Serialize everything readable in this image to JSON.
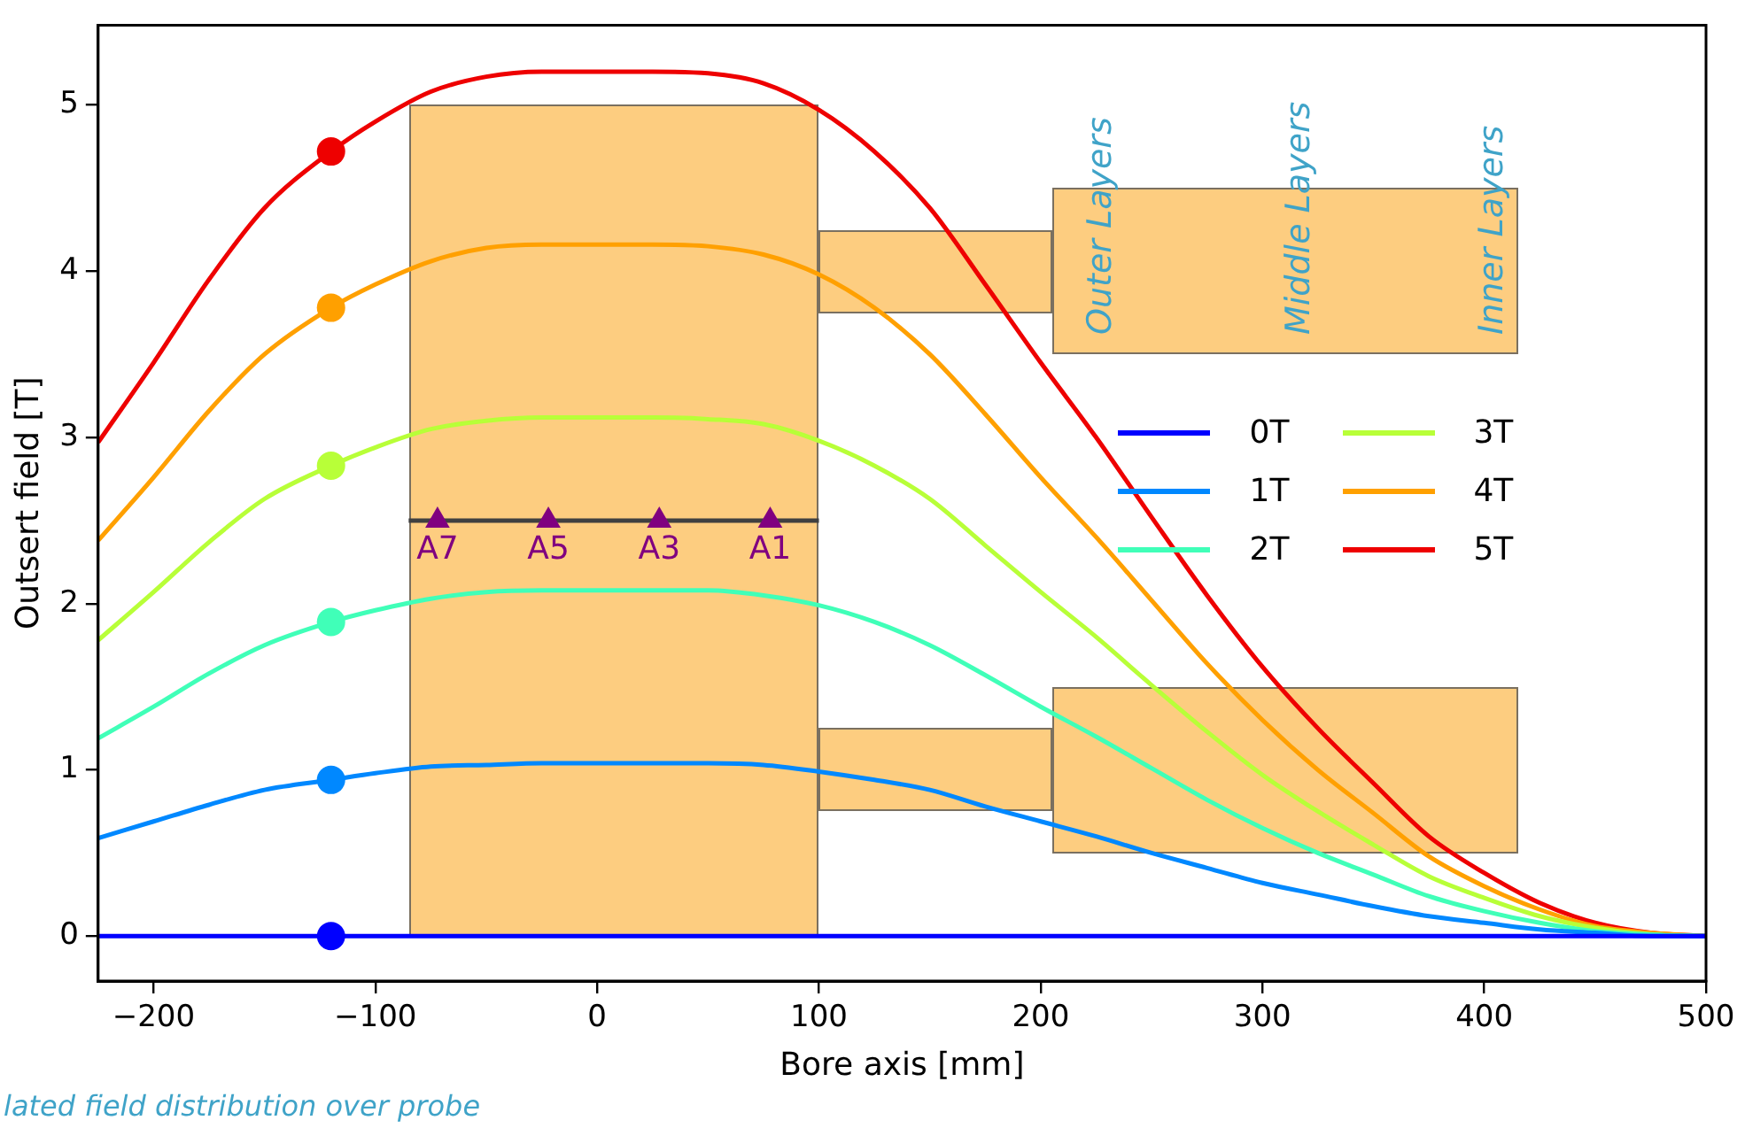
{
  "chart_data": {
    "type": "line",
    "xlabel": "Bore axis [mm]",
    "ylabel": "Outsert field [T]",
    "x": [
      -225,
      -200,
      -175,
      -150,
      -120,
      -100,
      -75,
      -50,
      -25,
      0,
      25,
      50,
      75,
      100,
      125,
      150,
      175,
      200,
      225,
      250,
      275,
      300,
      325,
      350,
      375,
      400,
      425,
      450,
      475,
      500
    ],
    "xlim": [
      -225,
      500
    ],
    "xticks": [
      -200,
      -100,
      0,
      100,
      200,
      300,
      400,
      500
    ],
    "ylim": [
      -0.27,
      5.48
    ],
    "yticks": [
      0,
      1,
      2,
      3,
      4,
      5
    ],
    "grid": false,
    "legend": "right",
    "marker": "none",
    "line_style": "solid",
    "series": [
      {
        "name": "0T",
        "color": "#0000ff",
        "values": [
          0,
          0,
          0,
          0,
          0,
          0,
          0,
          0,
          0,
          0,
          0,
          0,
          0,
          0,
          0,
          0,
          0,
          0,
          0,
          0,
          0,
          0,
          0,
          0,
          0,
          0,
          0,
          0,
          0,
          0
        ]
      },
      {
        "name": "1T",
        "color": "#0088ff",
        "values": [
          0.59,
          0.69,
          0.79,
          0.88,
          0.94,
          0.98,
          1.02,
          1.03,
          1.04,
          1.04,
          1.04,
          1.04,
          1.03,
          0.99,
          0.94,
          0.88,
          0.78,
          0.69,
          0.6,
          0.5,
          0.41,
          0.32,
          0.25,
          0.18,
          0.12,
          0.08,
          0.04,
          0.02,
          0,
          0
        ]
      },
      {
        "name": "2T",
        "color": "#40ffb8",
        "values": [
          1.19,
          1.38,
          1.58,
          1.75,
          1.89,
          1.96,
          2.03,
          2.07,
          2.08,
          2.08,
          2.08,
          2.08,
          2.05,
          1.99,
          1.89,
          1.75,
          1.57,
          1.38,
          1.2,
          1.01,
          0.82,
          0.65,
          0.5,
          0.37,
          0.24,
          0.15,
          0.08,
          0.03,
          0.01,
          0
        ]
      },
      {
        "name": "3T",
        "color": "#b8ff38",
        "values": [
          1.78,
          2.07,
          2.37,
          2.63,
          2.83,
          2.94,
          3.05,
          3.1,
          3.12,
          3.12,
          3.12,
          3.11,
          3.08,
          2.98,
          2.83,
          2.63,
          2.35,
          2.07,
          1.8,
          1.51,
          1.23,
          0.97,
          0.75,
          0.55,
          0.36,
          0.23,
          0.12,
          0.05,
          0.01,
          0
        ]
      },
      {
        "name": "4T",
        "color": "#ffa000",
        "values": [
          2.38,
          2.76,
          3.16,
          3.5,
          3.78,
          3.92,
          4.06,
          4.14,
          4.16,
          4.16,
          4.16,
          4.15,
          4.1,
          3.98,
          3.78,
          3.5,
          3.14,
          2.76,
          2.4,
          2.02,
          1.64,
          1.3,
          1,
          0.74,
          0.48,
          0.3,
          0.16,
          0.06,
          0.02,
          0
        ]
      },
      {
        "name": "5T",
        "color": "#ee0000",
        "values": [
          2.97,
          3.45,
          3.95,
          4.38,
          4.72,
          4.9,
          5.08,
          5.17,
          5.2,
          5.2,
          5.2,
          5.19,
          5.13,
          4.97,
          4.72,
          4.38,
          3.92,
          3.45,
          3.0,
          2.52,
          2.05,
          1.62,
          1.25,
          0.92,
          0.6,
          0.38,
          0.2,
          0.08,
          0.02,
          0
        ]
      },
      {
        "type": "scatter",
        "marker": "circle",
        "x": [
          -120,
          -120,
          -120,
          -120,
          -120,
          -120
        ],
        "values": [
          0,
          0.94,
          1.89,
          2.83,
          3.78,
          4.72
        ],
        "colors": [
          "#0000ff",
          "#0088ff",
          "#40ffb8",
          "#b8ff38",
          "#ffa000",
          "#ee0000"
        ]
      },
      {
        "type": "line",
        "color": "#404040",
        "x": [
          -85,
          100
        ],
        "values": [
          2.5,
          2.5
        ]
      },
      {
        "type": "scatter",
        "marker": "triangle",
        "color": "#800080",
        "x": [
          -72,
          -22,
          28,
          78
        ],
        "values": [
          2.5,
          2.5,
          2.5,
          2.5
        ]
      }
    ],
    "annotations": [
      {
        "text": "A7",
        "x": -72,
        "y": 2.5
      },
      {
        "text": "A5",
        "x": -22,
        "y": 2.5
      },
      {
        "text": "A3",
        "x": 28,
        "y": 2.5
      },
      {
        "text": "A1",
        "x": 78,
        "y": 2.5
      },
      "Outer Layers",
      "Middle Layers",
      "Inner Layers",
      "lated field distribution over probe"
    ]
  }
}
